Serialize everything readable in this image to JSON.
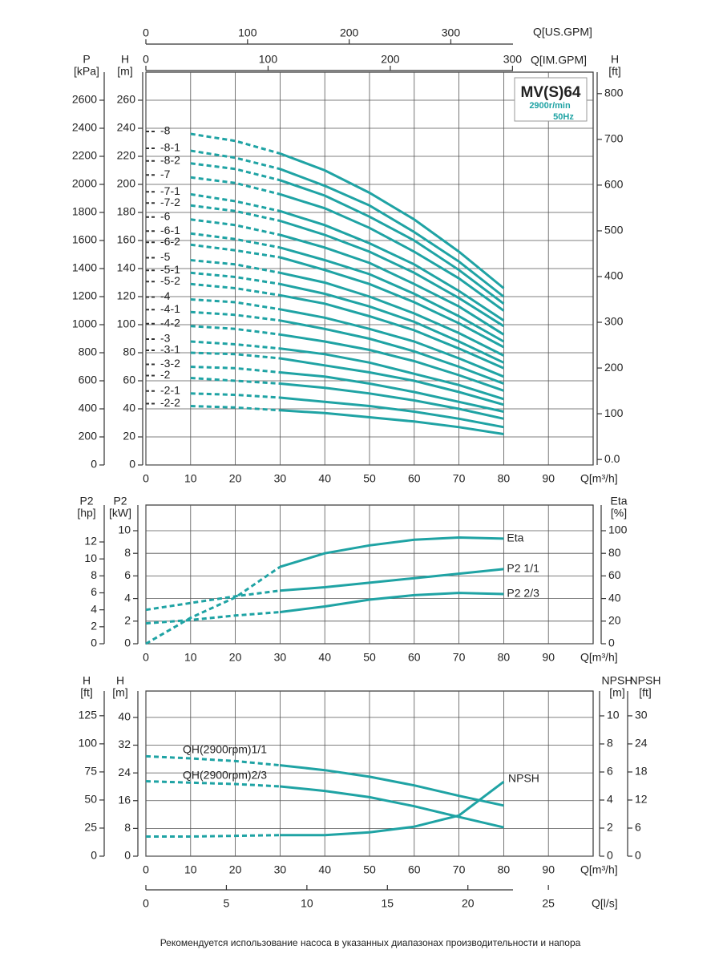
{
  "chart_data": [
    {
      "type": "line",
      "title": "MV(S)64",
      "speed": "2900r/min",
      "frequency": "50Hz",
      "x_label": "Q[m³/h]",
      "xlim": [
        0,
        100
      ],
      "xticks": [
        0,
        10,
        20,
        30,
        40,
        50,
        60,
        70,
        80,
        90
      ],
      "y_label": [
        "H",
        "[m]"
      ],
      "ylim": [
        0,
        280
      ],
      "yticks": [
        0,
        20,
        40,
        60,
        80,
        100,
        120,
        140,
        160,
        180,
        200,
        220,
        240,
        260
      ],
      "y3_label": [
        "P",
        "[kPa]"
      ],
      "y3lim": [
        0,
        2800
      ],
      "y3ticks": [
        0,
        200,
        400,
        600,
        800,
        1000,
        1200,
        1400,
        1600,
        1800,
        2000,
        2200,
        2400,
        2600
      ],
      "y2_label": [
        "H",
        "[ft]"
      ],
      "y2lim": [
        -12,
        847
      ],
      "y2ticks": [
        {
          "value": 0,
          "label": "0.0"
        },
        100,
        200,
        300,
        400,
        500,
        600,
        700,
        800
      ],
      "x2_label": "Q[IM.GPM]",
      "x2lim": [
        0,
        366
      ],
      "x2ticks": [
        0,
        100,
        200,
        300
      ],
      "x3_label": "Q[US.GPM]",
      "x3lim": [
        0,
        440
      ],
      "x3ticks": [
        0,
        100,
        200,
        300
      ],
      "grid": true,
      "dashed_until": 30,
      "label_at": "left",
      "x": [
        10,
        20,
        30,
        40,
        50,
        60,
        70,
        80
      ],
      "series": [
        {
          "name": "-8",
          "color": "#1fa3a4",
          "values": [
            236,
            231,
            222,
            210,
            194,
            175,
            152,
            126
          ]
        },
        {
          "name": "-8-1",
          "color": "#1fa3a4",
          "values": [
            224,
            219,
            211,
            199,
            185,
            166,
            145,
            120
          ]
        },
        {
          "name": "-8-2",
          "color": "#1fa3a4",
          "values": [
            215,
            211,
            203,
            192,
            177,
            160,
            139,
            115
          ]
        },
        {
          "name": "-7",
          "color": "#1fa3a4",
          "values": [
            205,
            201,
            193,
            183,
            169,
            152,
            133,
            110
          ]
        },
        {
          "name": "-7-1",
          "color": "#1fa3a4",
          "values": [
            193,
            188,
            181,
            171,
            158,
            143,
            124,
            103
          ]
        },
        {
          "name": "-7-2",
          "color": "#1fa3a4",
          "values": [
            185,
            181,
            174,
            164,
            152,
            137,
            119,
            99
          ]
        },
        {
          "name": "-6",
          "color": "#1fa3a4",
          "values": [
            175,
            171,
            164,
            155,
            144,
            129,
            113,
            93
          ]
        },
        {
          "name": "-6-1",
          "color": "#1fa3a4",
          "values": [
            165,
            161,
            155,
            146,
            136,
            122,
            106,
            88
          ]
        },
        {
          "name": "-6-2",
          "color": "#1fa3a4",
          "values": [
            157,
            153,
            148,
            139,
            129,
            116,
            101,
            84
          ]
        },
        {
          "name": "-5",
          "color": "#1fa3a4",
          "values": [
            146,
            143,
            137,
            130,
            120,
            108,
            94,
            78
          ]
        },
        {
          "name": "-5-1",
          "color": "#1fa3a4",
          "values": [
            137,
            134,
            129,
            122,
            113,
            102,
            88,
            73
          ]
        },
        {
          "name": "-5-2",
          "color": "#1fa3a4",
          "values": [
            129,
            126,
            121,
            115,
            106,
            96,
            83,
            69
          ]
        },
        {
          "name": "-4",
          "color": "#1fa3a4",
          "values": [
            118,
            116,
            111,
            105,
            97,
            88,
            76,
            63
          ]
        },
        {
          "name": "-4-1",
          "color": "#1fa3a4",
          "values": [
            109,
            107,
            103,
            97,
            90,
            81,
            70,
            58
          ]
        },
        {
          "name": "-4-2",
          "color": "#1fa3a4",
          "values": [
            99,
            97,
            93,
            88,
            82,
            74,
            64,
            53
          ]
        },
        {
          "name": "-3",
          "color": "#1fa3a4",
          "values": [
            88,
            86,
            83,
            79,
            73,
            65,
            57,
            47
          ]
        },
        {
          "name": "-3-1",
          "color": "#1fa3a4",
          "values": [
            80,
            79,
            76,
            71,
            66,
            60,
            52,
            43
          ]
        },
        {
          "name": "-3-2",
          "color": "#1fa3a4",
          "values": [
            70,
            69,
            66,
            63,
            58,
            52,
            45,
            38
          ]
        },
        {
          "name": "-2",
          "color": "#1fa3a4",
          "values": [
            62,
            60,
            58,
            55,
            51,
            46,
            40,
            33
          ]
        },
        {
          "name": "-2-1",
          "color": "#1fa3a4",
          "values": [
            51,
            50,
            48,
            45,
            42,
            38,
            33,
            27
          ]
        },
        {
          "name": "-2-2",
          "color": "#1fa3a4",
          "values": [
            42,
            41,
            39,
            37,
            34,
            31,
            27,
            22
          ]
        }
      ]
    },
    {
      "type": "line",
      "x_label": "Q[m³/h]",
      "xlim": [
        0,
        100
      ],
      "xticks": [
        0,
        10,
        20,
        30,
        40,
        50,
        60,
        70,
        80,
        90
      ],
      "y_label": [
        "P2",
        "[kW]"
      ],
      "ylim": [
        0,
        12.27
      ],
      "yticks": [
        0,
        2,
        4,
        6,
        8,
        10
      ],
      "y3_label": [
        "P2",
        "[hp]"
      ],
      "y3lim": [
        0,
        16.35
      ],
      "y3ticks": [
        0,
        2,
        4,
        6,
        8,
        10,
        12
      ],
      "y2_label": [
        "Eta",
        "[%]"
      ],
      "y2lim": [
        0,
        122.7
      ],
      "y2ticks": [
        0,
        20,
        40,
        60,
        80,
        100
      ],
      "grid": true,
      "dashed_until": 30,
      "label_at": "end",
      "x": [
        0,
        10,
        20,
        30,
        40,
        50,
        60,
        70,
        80
      ],
      "series": [
        {
          "name": "Eta",
          "color": "#1fa3a4",
          "axis": "y2",
          "values": [
            0,
            23,
            41,
            68,
            80,
            87,
            92,
            94,
            93
          ]
        },
        {
          "name": "P2 1/1",
          "color": "#1fa3a4",
          "values": [
            3.0,
            3.6,
            4.2,
            4.7,
            5.0,
            5.4,
            5.8,
            6.2,
            6.6
          ]
        },
        {
          "name": "P2 2/3",
          "color": "#1fa3a4",
          "values": [
            1.8,
            2.1,
            2.5,
            2.8,
            3.3,
            3.9,
            4.3,
            4.5,
            4.4
          ]
        }
      ]
    },
    {
      "type": "line",
      "x_label": "Q[m³/h]",
      "xlim": [
        0,
        100
      ],
      "xticks": [
        0,
        10,
        20,
        30,
        40,
        50,
        60,
        70,
        80,
        90
      ],
      "y_label": [
        "H",
        "[m]"
      ],
      "ylim": [
        0,
        47.6
      ],
      "yticks": [
        0,
        8,
        16,
        24,
        32,
        40
      ],
      "y3_label": [
        "H",
        "[ft]"
      ],
      "y3lim": [
        0,
        147
      ],
      "y3ticks": [
        0,
        25,
        50,
        75,
        100,
        125
      ],
      "y2_label": [
        "NPSH",
        "[m]"
      ],
      "y2lim": [
        0,
        11.77
      ],
      "y2ticks": [
        0,
        2,
        4,
        6,
        8,
        10
      ],
      "y4_label": [
        "NPSH",
        "[ft]"
      ],
      "y4lim": [
        0,
        35.3
      ],
      "y4ticks": [
        0,
        6,
        12,
        18,
        24,
        30
      ],
      "x2_label": "Q[l/s]",
      "x2lim": [
        0,
        27.78
      ],
      "x2ticks": [
        0,
        5,
        10,
        15,
        20,
        25
      ],
      "grid": true,
      "dashed_until": 30,
      "label_at": "custom",
      "x": [
        0,
        10,
        20,
        30,
        40,
        50,
        60,
        70,
        80
      ],
      "series": [
        {
          "name": "QH(2900rpm)1/1",
          "color": "#1fa3a4",
          "values": [
            28.8,
            28.2,
            27.4,
            26.2,
            24.8,
            22.9,
            20.4,
            17.4,
            14.6
          ]
        },
        {
          "name": "QH(2900rpm)2/3",
          "color": "#1fa3a4",
          "values": [
            21.6,
            21.2,
            20.8,
            20.1,
            18.8,
            17.0,
            14.4,
            11.3,
            8.3
          ]
        },
        {
          "name": "NPSH",
          "color": "#1fa3a4",
          "axis": "y2",
          "values": [
            1.4,
            1.4,
            1.45,
            1.5,
            1.5,
            1.7,
            2.1,
            2.9,
            5.3
          ]
        }
      ]
    }
  ],
  "note": "Рекомендуется использование насоса в указанных диапазонах производительности и напора"
}
